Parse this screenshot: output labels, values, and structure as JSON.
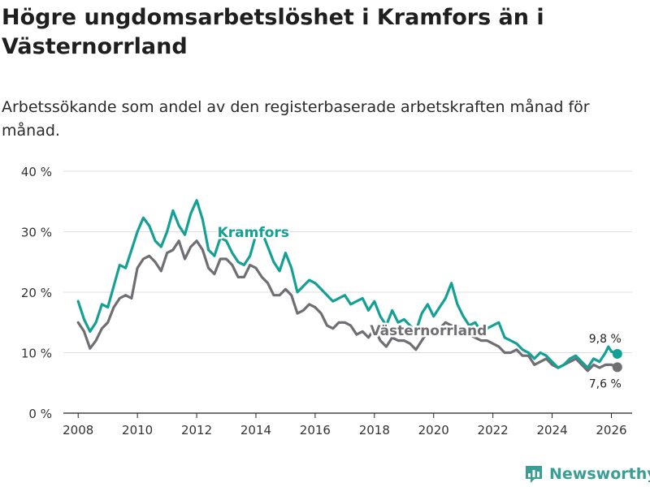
{
  "header": {
    "title": "Högre ungdomsarbetslöshet i Kramfors än i Västernorrland",
    "subtitle": "Arbetssökande som andel av den registerbaserade arbetskraften månad för månad."
  },
  "brand": {
    "name": "Newsworthy"
  },
  "colors": {
    "kramfors": "#14a094",
    "vasternorrland": "#6f6e73",
    "grid": "#dddddd",
    "axis": "#222222"
  },
  "chart_data": {
    "type": "line",
    "title": "Högre ungdomsarbetslöshet i Kramfors än i Västernorrland",
    "xlabel": "",
    "ylabel": "",
    "xlim": [
      2007.5,
      2026.7
    ],
    "ylim": [
      0,
      40
    ],
    "x_ticks": [
      2008,
      2010,
      2012,
      2014,
      2016,
      2018,
      2020,
      2022,
      2024,
      2026
    ],
    "x_tick_labels": [
      "2008",
      "2010",
      "2012",
      "2014",
      "2016",
      "2018",
      "2020",
      "2022",
      "2024",
      "2026"
    ],
    "y_ticks": [
      0,
      10,
      20,
      30,
      40
    ],
    "y_tick_labels": [
      "0 %",
      "10 %",
      "20 %",
      "30 %",
      "40 %"
    ],
    "grid": true,
    "series": [
      {
        "name": "Kramfors",
        "points": [
          [
            2008.0,
            18.5
          ],
          [
            2008.2,
            15.5
          ],
          [
            2008.4,
            13.5
          ],
          [
            2008.6,
            15.0
          ],
          [
            2008.8,
            18.0
          ],
          [
            2009.0,
            17.5
          ],
          [
            2009.2,
            21.0
          ],
          [
            2009.4,
            24.5
          ],
          [
            2009.6,
            24.0
          ],
          [
            2009.8,
            27.0
          ],
          [
            2010.0,
            30.0
          ],
          [
            2010.2,
            32.3
          ],
          [
            2010.4,
            31.0
          ],
          [
            2010.6,
            28.5
          ],
          [
            2010.8,
            27.5
          ],
          [
            2011.0,
            30.0
          ],
          [
            2011.2,
            33.5
          ],
          [
            2011.4,
            31.0
          ],
          [
            2011.6,
            29.5
          ],
          [
            2011.8,
            33.0
          ],
          [
            2012.0,
            35.2
          ],
          [
            2012.2,
            32.0
          ],
          [
            2012.4,
            27.0
          ],
          [
            2012.6,
            26.0
          ],
          [
            2012.8,
            29.0
          ],
          [
            2013.0,
            28.5
          ],
          [
            2013.2,
            26.5
          ],
          [
            2013.4,
            25.0
          ],
          [
            2013.6,
            24.5
          ],
          [
            2013.8,
            26.0
          ],
          [
            2014.0,
            29.5
          ],
          [
            2014.2,
            30.0
          ],
          [
            2014.4,
            27.5
          ],
          [
            2014.6,
            25.0
          ],
          [
            2014.8,
            23.5
          ],
          [
            2015.0,
            26.5
          ],
          [
            2015.2,
            24.0
          ],
          [
            2015.4,
            20.0
          ],
          [
            2015.6,
            21.0
          ],
          [
            2015.8,
            22.0
          ],
          [
            2016.0,
            21.5
          ],
          [
            2016.2,
            20.5
          ],
          [
            2016.4,
            19.5
          ],
          [
            2016.6,
            18.5
          ],
          [
            2016.8,
            19.0
          ],
          [
            2017.0,
            19.5
          ],
          [
            2017.2,
            18.0
          ],
          [
            2017.4,
            18.5
          ],
          [
            2017.6,
            19.0
          ],
          [
            2017.8,
            17.0
          ],
          [
            2018.0,
            18.5
          ],
          [
            2018.2,
            16.0
          ],
          [
            2018.4,
            14.5
          ],
          [
            2018.6,
            17.0
          ],
          [
            2018.8,
            15.0
          ],
          [
            2019.0,
            15.5
          ],
          [
            2019.2,
            14.5
          ],
          [
            2019.4,
            13.5
          ],
          [
            2019.6,
            16.5
          ],
          [
            2019.8,
            18.0
          ],
          [
            2020.0,
            16.0
          ],
          [
            2020.2,
            17.5
          ],
          [
            2020.4,
            19.0
          ],
          [
            2020.6,
            21.5
          ],
          [
            2020.8,
            18.0
          ],
          [
            2021.0,
            16.0
          ],
          [
            2021.2,
            14.5
          ],
          [
            2021.4,
            15.0
          ],
          [
            2021.6,
            13.5
          ],
          [
            2021.8,
            14.0
          ],
          [
            2022.0,
            14.5
          ],
          [
            2022.2,
            15.0
          ],
          [
            2022.4,
            12.5
          ],
          [
            2022.6,
            12.0
          ],
          [
            2022.8,
            11.5
          ],
          [
            2023.0,
            10.5
          ],
          [
            2023.2,
            10.0
          ],
          [
            2023.4,
            9.0
          ],
          [
            2023.6,
            10.0
          ],
          [
            2023.8,
            9.5
          ],
          [
            2024.0,
            8.5
          ],
          [
            2024.2,
            7.5
          ],
          [
            2024.4,
            8.0
          ],
          [
            2024.6,
            9.0
          ],
          [
            2024.8,
            9.5
          ],
          [
            2025.0,
            8.5
          ],
          [
            2025.2,
            7.5
          ],
          [
            2025.4,
            9.0
          ],
          [
            2025.6,
            8.5
          ],
          [
            2025.8,
            10.0
          ],
          [
            2025.9,
            11.0
          ],
          [
            2026.0,
            10.2
          ],
          [
            2026.2,
            9.8
          ]
        ],
        "label": "Kramfors",
        "end_label": "9,8 %"
      },
      {
        "name": "Västernorrland",
        "points": [
          [
            2008.0,
            15.0
          ],
          [
            2008.2,
            13.5
          ],
          [
            2008.4,
            10.7
          ],
          [
            2008.6,
            12.0
          ],
          [
            2008.8,
            14.0
          ],
          [
            2009.0,
            15.0
          ],
          [
            2009.2,
            17.5
          ],
          [
            2009.4,
            19.0
          ],
          [
            2009.6,
            19.5
          ],
          [
            2009.8,
            19.0
          ],
          [
            2010.0,
            24.0
          ],
          [
            2010.2,
            25.5
          ],
          [
            2010.4,
            26.0
          ],
          [
            2010.6,
            25.0
          ],
          [
            2010.8,
            23.5
          ],
          [
            2011.0,
            26.5
          ],
          [
            2011.2,
            27.0
          ],
          [
            2011.4,
            28.5
          ],
          [
            2011.6,
            25.5
          ],
          [
            2011.8,
            27.5
          ],
          [
            2012.0,
            28.5
          ],
          [
            2012.2,
            27.0
          ],
          [
            2012.4,
            24.0
          ],
          [
            2012.6,
            23.0
          ],
          [
            2012.8,
            25.5
          ],
          [
            2013.0,
            25.5
          ],
          [
            2013.2,
            24.5
          ],
          [
            2013.4,
            22.5
          ],
          [
            2013.6,
            22.5
          ],
          [
            2013.8,
            24.5
          ],
          [
            2014.0,
            24.0
          ],
          [
            2014.2,
            22.5
          ],
          [
            2014.4,
            21.5
          ],
          [
            2014.6,
            19.5
          ],
          [
            2014.8,
            19.5
          ],
          [
            2015.0,
            20.5
          ],
          [
            2015.2,
            19.5
          ],
          [
            2015.4,
            16.5
          ],
          [
            2015.6,
            17.0
          ],
          [
            2015.8,
            18.0
          ],
          [
            2016.0,
            17.5
          ],
          [
            2016.2,
            16.5
          ],
          [
            2016.4,
            14.5
          ],
          [
            2016.6,
            14.0
          ],
          [
            2016.8,
            15.0
          ],
          [
            2017.0,
            15.0
          ],
          [
            2017.2,
            14.5
          ],
          [
            2017.4,
            13.0
          ],
          [
            2017.6,
            13.5
          ],
          [
            2017.8,
            12.5
          ],
          [
            2018.0,
            14.0
          ],
          [
            2018.2,
            12.0
          ],
          [
            2018.4,
            11.0
          ],
          [
            2018.6,
            12.5
          ],
          [
            2018.8,
            12.0
          ],
          [
            2019.0,
            12.0
          ],
          [
            2019.2,
            11.5
          ],
          [
            2019.4,
            10.5
          ],
          [
            2019.6,
            12.0
          ],
          [
            2019.8,
            13.5
          ],
          [
            2020.0,
            13.0
          ],
          [
            2020.2,
            14.0
          ],
          [
            2020.4,
            15.0
          ],
          [
            2020.6,
            14.5
          ],
          [
            2020.8,
            14.5
          ],
          [
            2021.0,
            13.5
          ],
          [
            2021.2,
            13.0
          ],
          [
            2021.4,
            12.5
          ],
          [
            2021.6,
            12.0
          ],
          [
            2021.8,
            12.0
          ],
          [
            2022.0,
            11.5
          ],
          [
            2022.2,
            11.0
          ],
          [
            2022.4,
            10.0
          ],
          [
            2022.6,
            10.0
          ],
          [
            2022.8,
            10.5
          ],
          [
            2023.0,
            9.5
          ],
          [
            2023.2,
            9.5
          ],
          [
            2023.4,
            8.0
          ],
          [
            2023.6,
            8.5
          ],
          [
            2023.8,
            9.0
          ],
          [
            2024.0,
            8.0
          ],
          [
            2024.2,
            7.5
          ],
          [
            2024.4,
            8.0
          ],
          [
            2024.6,
            8.5
          ],
          [
            2024.8,
            9.0
          ],
          [
            2025.0,
            8.0
          ],
          [
            2025.2,
            7.0
          ],
          [
            2025.4,
            8.0
          ],
          [
            2025.6,
            7.5
          ],
          [
            2025.8,
            8.0
          ],
          [
            2026.0,
            8.0
          ],
          [
            2026.2,
            7.6
          ]
        ],
        "label": "Västernorrland",
        "end_label": "7,6 %"
      }
    ]
  }
}
